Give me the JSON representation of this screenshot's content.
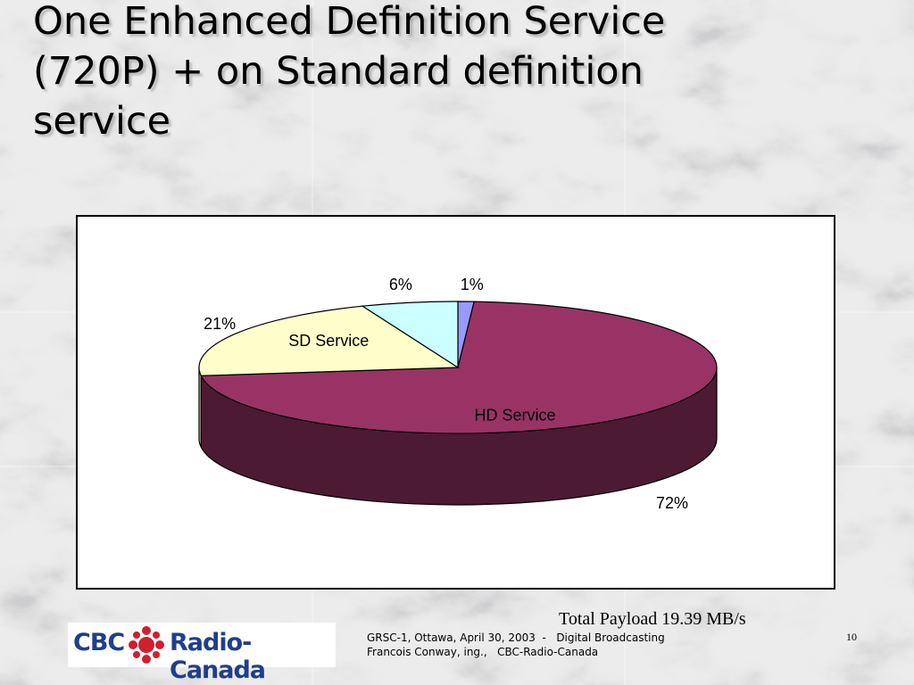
{
  "slide": {
    "title": "One Enhanced Definition Service (720P) + on Standard definition service",
    "payload_note": "Total Payload 19.39 MB/s",
    "footer_line1": "GRSC-1, Ottawa, April 30, 2003  -   Digital Broadcasting",
    "footer_line2": "Francois Conway, ing.,   CBC-Radio-Canada",
    "page_number": "10",
    "logo": {
      "left_text": "CBC",
      "right_text": "Radio-Canada"
    }
  },
  "chart_data": {
    "type": "pie",
    "style": "3d",
    "slices": [
      {
        "label": "HD Service",
        "value": 72,
        "value_label": "72%",
        "color": "#993366",
        "side_color": "#4d1a33"
      },
      {
        "label": "SD Service",
        "value": 21,
        "value_label": "21%",
        "color": "#ffffcc",
        "side_color": "#c8c8a0"
      },
      {
        "label": "",
        "value": 6,
        "value_label": "6%",
        "color": "#ccffff",
        "side_color": "#a0c8c8"
      },
      {
        "label": "",
        "value": 1,
        "value_label": "1%",
        "color": "#9999ff",
        "side_color": "#6666cc"
      }
    ],
    "legend": "none"
  }
}
